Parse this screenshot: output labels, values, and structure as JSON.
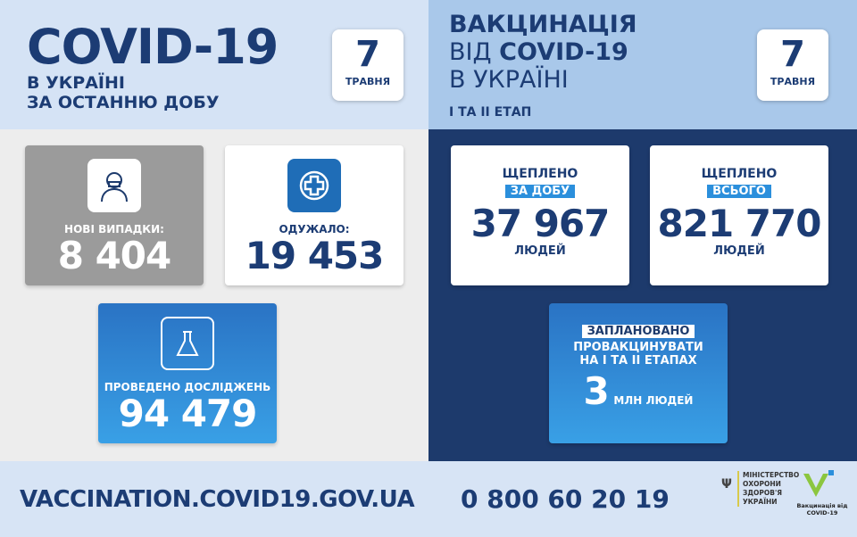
{
  "left": {
    "title": "COVID-19",
    "subtitle1": "В УКРАЇНІ",
    "subtitle2": "ЗА ОСТАННЮ ДОБУ",
    "date_day": "7",
    "date_month": "ТРАВНЯ",
    "new_cases": {
      "label": "НОВІ ВИПАДКИ:",
      "value": "8 404",
      "icon": "sick-person-icon"
    },
    "recovered": {
      "label": "ОДУЖАЛО:",
      "value": "19 453",
      "icon": "medical-cross-icon"
    },
    "tests": {
      "label": "ПРОВЕДЕНО ДОСЛІДЖЕНЬ",
      "value": "94 479",
      "icon": "flask-icon"
    }
  },
  "right": {
    "title1": "ВАКЦИНАЦІЯ",
    "title2_prefix": "ВІД ",
    "title2_bold": "COVID-19",
    "title3": "В УКРАЇНІ",
    "stage": "І ТА ІІ ЕТАП",
    "date_day": "7",
    "date_month": "ТРАВНЯ",
    "daily": {
      "top": "ЩЕПЛЕНО",
      "highlight": "ЗА ДОБУ",
      "value": "37 967",
      "unit": "ЛЮДЕЙ"
    },
    "total": {
      "top": "ЩЕПЛЕНО",
      "highlight": "ВСЬОГО",
      "value": "821 770",
      "unit": "ЛЮДЕЙ"
    },
    "planned": {
      "highlight": "ЗАПЛАНОВАНО",
      "line2": "ПРОВАКЦИНУВАТИ",
      "line3": "НА І ТА ІІ ЕТАПАХ",
      "value": "3",
      "unit": "МЛН ЛЮДЕЙ"
    }
  },
  "footer": {
    "url": "VACCINATION.COVID19.GOV.UA",
    "phone": "0 800 60 20 19",
    "ministry": [
      "МІНІСТЕРСТВО",
      "ОХОРОНИ",
      "ЗДОРОВ'Я",
      "УКРАЇНИ"
    ],
    "vax_logo": "Вакцинація від COVID-19"
  },
  "colors": {
    "navy": "#1d3a6c",
    "light": "#d5e3f5",
    "accent": "#2b8fdc",
    "gray": "#9b9b9b"
  }
}
